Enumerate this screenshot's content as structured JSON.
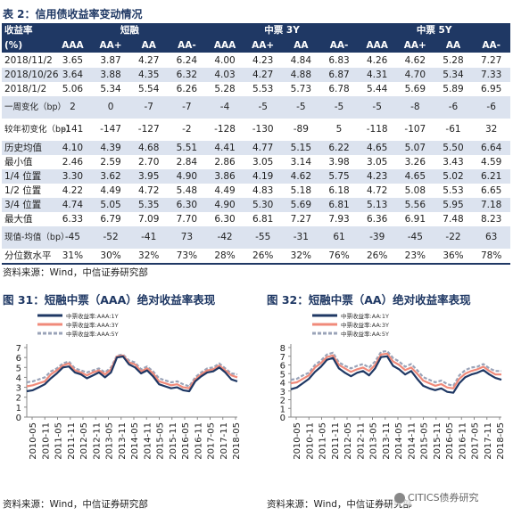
{
  "table": {
    "title": "表 2：信用债收益率变动情况",
    "header": {
      "corner_top": "收益率",
      "corner_bottom": "(%)",
      "groups": [
        "短融",
        "中票  3Y",
        "中票  5Y"
      ],
      "ratings": [
        "AAA",
        "AA+",
        "AA",
        "AA-",
        "AAA",
        "AA+",
        "AA",
        "AA-",
        "AAA",
        "AA+",
        "AA",
        "AA-"
      ]
    },
    "rows": [
      {
        "label": "2018/11/2",
        "values": [
          "3.65",
          "3.87",
          "4.27",
          "6.24",
          "4.00",
          "4.23",
          "4.84",
          "6.83",
          "4.26",
          "4.62",
          "5.28",
          "7.27"
        ]
      },
      {
        "label": "2018/10/26",
        "values": [
          "3.64",
          "3.88",
          "4.35",
          "6.32",
          "4.03",
          "4.27",
          "4.88",
          "6.87",
          "4.31",
          "4.70",
          "5.34",
          "7.33"
        ]
      },
      {
        "label": "2018/1/2",
        "values": [
          "5.06",
          "5.34",
          "5.54",
          "6.26",
          "5.28",
          "5.53",
          "5.73",
          "6.78",
          "5.44",
          "5.69",
          "5.89",
          "6.95"
        ]
      },
      {
        "label": "一周变化（bp）",
        "values": [
          "2",
          "0",
          "-7",
          "-7",
          "-4",
          "-5",
          "-5",
          "-5",
          "-5",
          "-8",
          "-6",
          "-6"
        ]
      },
      {
        "label": "较年初变化（bp）",
        "values": [
          "-141",
          "-147",
          "-127",
          "-2",
          "-128",
          "-130",
          "-89",
          "5",
          "-118",
          "-107",
          "-61",
          "32"
        ]
      },
      {
        "label": "历史均值",
        "values": [
          "4.10",
          "4.39",
          "4.68",
          "5.51",
          "4.41",
          "4.77",
          "5.15",
          "6.22",
          "4.65",
          "5.07",
          "5.50",
          "6.64"
        ]
      },
      {
        "label": "最小值",
        "values": [
          "2.46",
          "2.59",
          "2.70",
          "2.84",
          "2.86",
          "3.05",
          "3.14",
          "3.98",
          "3.05",
          "3.26",
          "3.43",
          "4.59"
        ]
      },
      {
        "label": "1/4 位置",
        "values": [
          "3.30",
          "3.62",
          "3.95",
          "4.90",
          "3.86",
          "4.19",
          "4.62",
          "5.75",
          "4.23",
          "4.65",
          "5.02",
          "6.21"
        ]
      },
      {
        "label": "1/2 位置",
        "values": [
          "4.22",
          "4.49",
          "4.72",
          "5.48",
          "4.49",
          "4.83",
          "5.18",
          "6.18",
          "4.72",
          "5.08",
          "5.53",
          "6.65"
        ]
      },
      {
        "label": "3/4 位置",
        "values": [
          "4.74",
          "5.05",
          "5.35",
          "6.30",
          "4.90",
          "5.30",
          "5.69",
          "6.81",
          "5.13",
          "5.56",
          "5.95",
          "7.18"
        ]
      },
      {
        "label": "最大值",
        "values": [
          "6.33",
          "6.79",
          "7.09",
          "7.70",
          "6.30",
          "6.81",
          "7.27",
          "7.93",
          "6.36",
          "6.91",
          "7.48",
          "8.23"
        ]
      },
      {
        "label": "现值-均值（bp）",
        "values": [
          "-45",
          "-52",
          "-41",
          "73",
          "-42",
          "-55",
          "-31",
          "61",
          "-39",
          "-45",
          "-22",
          "63"
        ]
      },
      {
        "label": "分位数水平",
        "values": [
          "31%",
          "30%",
          "32%",
          "73%",
          "28%",
          "26%",
          "32%",
          "76%",
          "26%",
          "23%",
          "36%",
          "78%"
        ]
      }
    ],
    "source": "资料来源：Wind，中信证券研究部"
  },
  "figures": [
    {
      "title": "图 31：短融中票（AAA）绝对收益率表现",
      "source": "资料来源：Wind，中信证券研究部"
    },
    {
      "title": "图 32：短融中票（AA）绝对收益率表现",
      "source": "资料来源：Wind，中信证券研究部"
    }
  ],
  "watermark": "CITICS债券研究",
  "chart_data": [
    {
      "type": "line",
      "title": "",
      "ylim": [
        0,
        7
      ],
      "yticks": [
        0,
        1,
        2,
        3,
        4,
        5,
        6,
        7
      ],
      "x_tick_labels": [
        "2010-05",
        "2010-11",
        "2011-05",
        "2011-11",
        "2012-05",
        "2012-11",
        "2013-05",
        "2013-11",
        "2014-05",
        "2014-11",
        "2015-05",
        "2015-11",
        "2016-05",
        "2016-11",
        "2017-05",
        "2017-11",
        "2018-05"
      ],
      "x": [
        "2010-01",
        "2010-04",
        "2010-07",
        "2010-10",
        "2011-01",
        "2011-04",
        "2011-07",
        "2011-10",
        "2012-01",
        "2012-04",
        "2012-07",
        "2012-10",
        "2013-01",
        "2013-04",
        "2013-07",
        "2013-10",
        "2014-01",
        "2014-04",
        "2014-07",
        "2014-10",
        "2015-01",
        "2015-04",
        "2015-07",
        "2015-10",
        "2016-01",
        "2016-04",
        "2016-07",
        "2016-10",
        "2017-01",
        "2017-04",
        "2017-07",
        "2017-10",
        "2018-01",
        "2018-04",
        "2018-07",
        "2018-10"
      ],
      "grid": false,
      "legend_position": "top",
      "series": [
        {
          "name": "中票收益率:AAA:1Y",
          "color": "#1f3864",
          "style": "solid",
          "width": 2.2,
          "values": [
            2.6,
            2.7,
            3.0,
            3.3,
            3.9,
            4.4,
            5.0,
            5.1,
            4.5,
            4.3,
            3.9,
            4.2,
            4.5,
            4.0,
            4.5,
            6.0,
            6.1,
            5.3,
            5.0,
            4.4,
            4.7,
            4.1,
            3.3,
            3.1,
            2.9,
            3.0,
            2.7,
            2.6,
            3.6,
            4.1,
            4.5,
            4.6,
            5.0,
            4.5,
            3.8,
            3.6
          ]
        },
        {
          "name": "中票收益率:AAA:3Y",
          "color": "#f08a7a",
          "style": "solid",
          "width": 2.2,
          "values": [
            3.1,
            3.2,
            3.4,
            3.6,
            4.3,
            4.7,
            5.2,
            5.4,
            4.7,
            4.5,
            4.2,
            4.5,
            4.7,
            4.3,
            4.8,
            6.1,
            6.2,
            5.5,
            5.3,
            4.6,
            4.9,
            4.4,
            3.6,
            3.4,
            3.2,
            3.3,
            3.0,
            2.9,
            3.8,
            4.3,
            4.7,
            4.8,
            5.2,
            4.7,
            4.2,
            4.0
          ]
        },
        {
          "name": "中票收益率:AAA:5Y",
          "color": "#9aa3b8",
          "style": "dashed",
          "width": 2.2,
          "values": [
            3.5,
            3.6,
            3.8,
            4.0,
            4.6,
            4.9,
            5.4,
            5.6,
            4.9,
            4.7,
            4.5,
            4.7,
            4.9,
            4.5,
            5.0,
            6.2,
            6.3,
            5.7,
            5.5,
            4.8,
            5.1,
            4.6,
            3.9,
            3.7,
            3.5,
            3.6,
            3.3,
            3.1,
            4.0,
            4.5,
            4.9,
            5.0,
            5.4,
            4.9,
            4.4,
            4.3
          ]
        }
      ]
    },
    {
      "type": "line",
      "title": "",
      "ylim": [
        0,
        8
      ],
      "yticks": [
        0,
        1,
        2,
        3,
        4,
        5,
        6,
        7,
        8
      ],
      "x_tick_labels": [
        "2010-05",
        "2010-11",
        "2011-05",
        "2011-11",
        "2012-05",
        "2012-11",
        "2013-05",
        "2013-11",
        "2014-05",
        "2014-11",
        "2015-05",
        "2015-11",
        "2016-05",
        "2016-11",
        "2017-05",
        "2017-11",
        "2018-05"
      ],
      "x": [
        "2010-01",
        "2010-04",
        "2010-07",
        "2010-10",
        "2011-01",
        "2011-04",
        "2011-07",
        "2011-10",
        "2012-01",
        "2012-04",
        "2012-07",
        "2012-10",
        "2013-01",
        "2013-04",
        "2013-07",
        "2013-10",
        "2014-01",
        "2014-04",
        "2014-07",
        "2014-10",
        "2015-01",
        "2015-04",
        "2015-07",
        "2015-10",
        "2016-01",
        "2016-04",
        "2016-07",
        "2016-10",
        "2017-01",
        "2017-04",
        "2017-07",
        "2017-10",
        "2018-01",
        "2018-04",
        "2018-07",
        "2018-10"
      ],
      "grid": false,
      "legend_position": "top",
      "series": [
        {
          "name": "中票收益率:AA:1Y",
          "color": "#1f3864",
          "style": "solid",
          "width": 2.2,
          "values": [
            3.2,
            3.4,
            3.9,
            4.4,
            5.2,
            5.8,
            6.6,
            6.8,
            5.6,
            5.1,
            4.7,
            5.1,
            5.3,
            4.8,
            5.6,
            6.9,
            7.0,
            5.9,
            5.5,
            4.9,
            5.3,
            4.4,
            3.6,
            3.3,
            3.1,
            3.3,
            2.9,
            2.8,
            3.9,
            4.6,
            4.9,
            5.1,
            5.4,
            4.9,
            4.5,
            4.3
          ]
        },
        {
          "name": "中票收益率:AA:3Y",
          "color": "#f08a7a",
          "style": "solid",
          "width": 2.2,
          "values": [
            3.9,
            4.0,
            4.4,
            4.8,
            5.7,
            6.2,
            6.9,
            7.1,
            6.0,
            5.6,
            5.2,
            5.5,
            5.7,
            5.3,
            6.0,
            7.2,
            7.3,
            6.4,
            6.0,
            5.4,
            5.7,
            5.0,
            4.2,
            3.9,
            3.6,
            3.8,
            3.4,
            3.3,
            4.4,
            5.0,
            5.3,
            5.5,
            5.8,
            5.3,
            4.9,
            4.9
          ]
        },
        {
          "name": "中票收益率:AA:5Y",
          "color": "#9aa3b8",
          "style": "dashed",
          "width": 2.2,
          "values": [
            4.3,
            4.4,
            4.8,
            5.1,
            6.0,
            6.5,
            7.2,
            7.4,
            6.3,
            5.9,
            5.6,
            5.9,
            6.1,
            5.7,
            6.4,
            7.5,
            7.6,
            6.8,
            6.4,
            5.8,
            6.1,
            5.4,
            4.6,
            4.3,
            4.0,
            4.2,
            3.8,
            3.6,
            4.8,
            5.4,
            5.7,
            5.8,
            6.1,
            5.6,
            5.3,
            5.3
          ]
        }
      ]
    }
  ]
}
